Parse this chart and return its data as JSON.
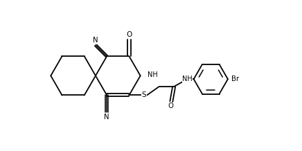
{
  "background": "#ffffff",
  "lc": "#000000",
  "lw": 1.3,
  "fs": 7.0,
  "figsize": [
    4.36,
    2.18
  ],
  "dpi": 100,
  "xlim": [
    0,
    43.6
  ],
  "ylim": [
    0,
    21.8
  ]
}
